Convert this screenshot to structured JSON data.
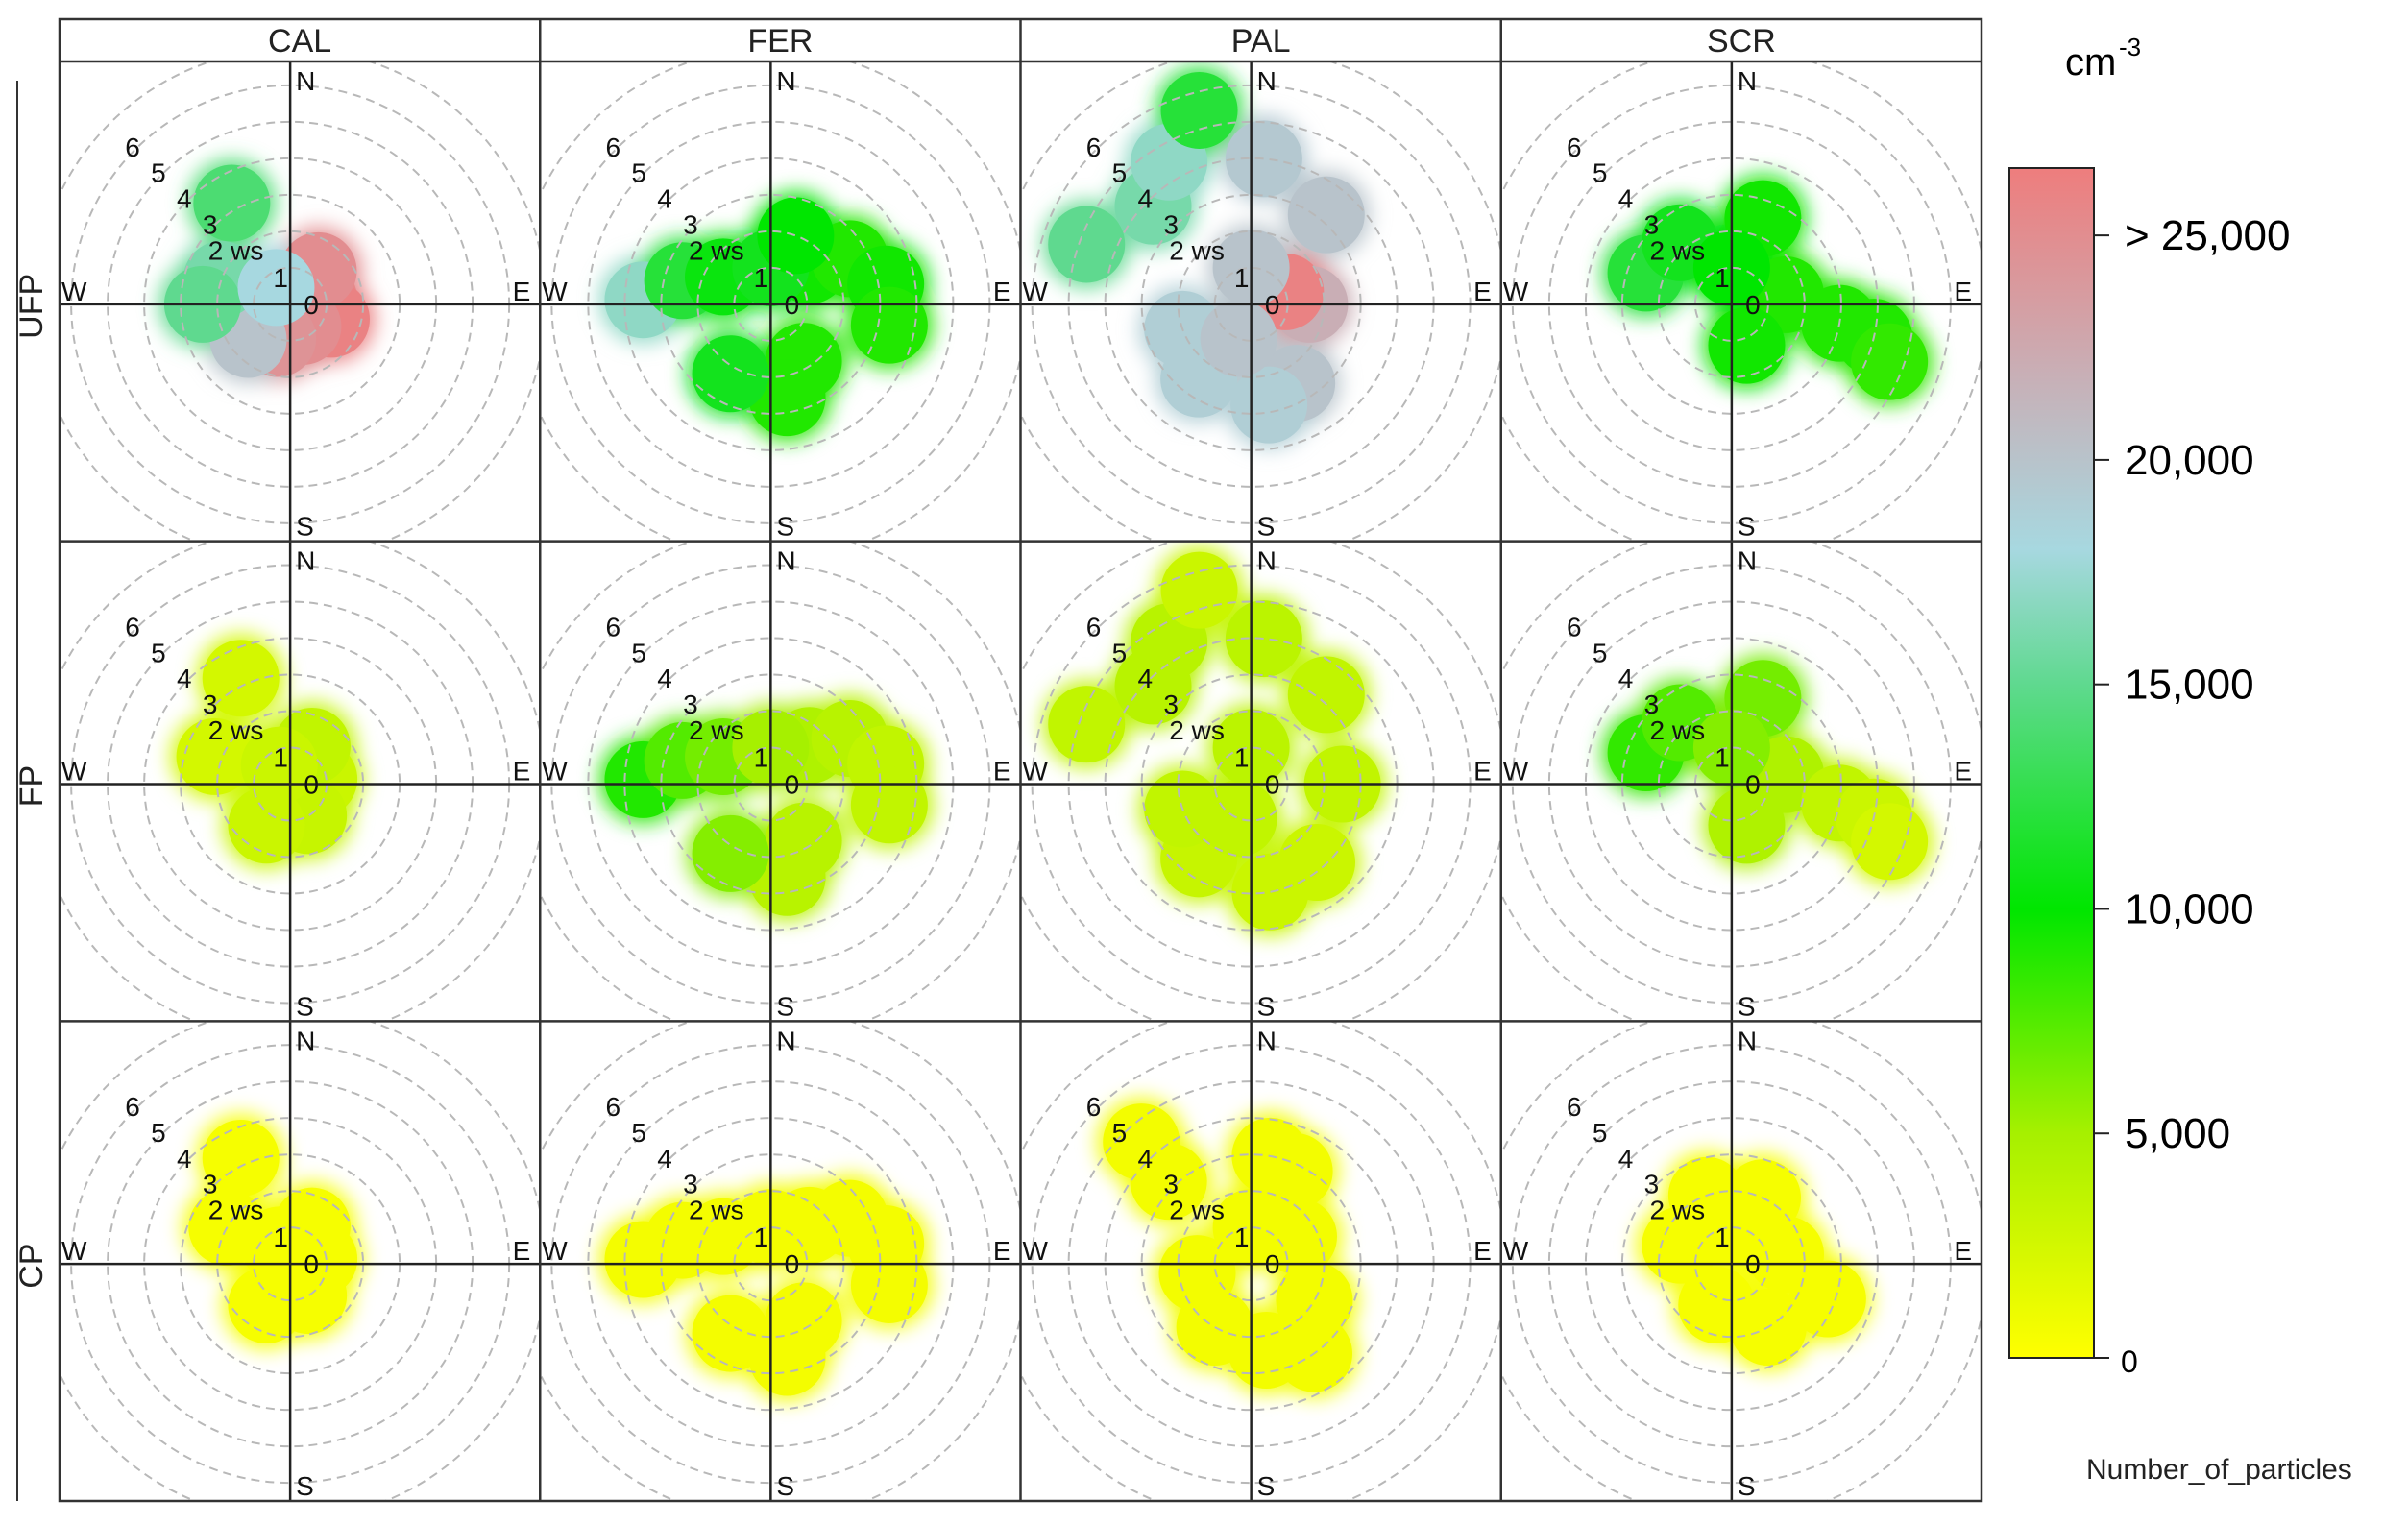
{
  "chart_data": {
    "type": "polar-plot-grid",
    "columns": [
      "CAL",
      "FER",
      "PAL",
      "SCR"
    ],
    "rows": [
      "UFP",
      "FP",
      "CP"
    ],
    "directions": [
      "N",
      "E",
      "S",
      "W"
    ],
    "ring_labels": [
      "0",
      "1",
      "2 ws",
      "3",
      "4",
      "5",
      "6"
    ],
    "colorbar": {
      "unit": "cm",
      "unit_superscript": "-3",
      "ticks": [
        {
          "value": 0,
          "label": "0"
        },
        {
          "value": 5000,
          "label": "5,000"
        },
        {
          "value": 10000,
          "label": "10,000"
        },
        {
          "value": 15000,
          "label": "15,000"
        },
        {
          "value": 20000,
          "label": "20,000"
        },
        {
          "value": 25000,
          "label": "> 25,000"
        }
      ],
      "range": [
        0,
        26500
      ],
      "stops": [
        {
          "value": 0,
          "color": "#ffff00"
        },
        {
          "value": 5000,
          "color": "#a6f000"
        },
        {
          "value": 10000,
          "color": "#00e600"
        },
        {
          "value": 15000,
          "color": "#5fd98f"
        },
        {
          "value": 18000,
          "color": "#a7d8e0"
        },
        {
          "value": 22000,
          "color": "#c9aeb5"
        },
        {
          "value": 26500,
          "color": "#ee7d7d"
        }
      ],
      "variable": "Number_of_particles"
    },
    "panels": [
      {
        "row": "UFP",
        "col": "CAL",
        "blobs": [
          {
            "ws": 0.8,
            "dir": 80,
            "value": 25500
          },
          {
            "ws": 1.2,
            "dir": 110,
            "value": 26000
          },
          {
            "ws": 0.7,
            "dir": 150,
            "value": 25000
          },
          {
            "ws": 1.0,
            "dir": 200,
            "value": 24500
          },
          {
            "ws": 1.5,
            "dir": 230,
            "value": 20000
          },
          {
            "ws": 2.0,
            "dir": 290,
            "value": 16000
          },
          {
            "ws": 2.4,
            "dir": 270,
            "value": 15000
          },
          {
            "ws": 3.2,
            "dir": 330,
            "value": 14000
          },
          {
            "ws": 1.2,
            "dir": 40,
            "value": 25000
          },
          {
            "ws": 0.6,
            "dir": 320,
            "value": 18000
          }
        ]
      },
      {
        "row": "UFP",
        "col": "FER",
        "blobs": [
          {
            "ws": 3.5,
            "dir": 272,
            "value": 17000
          },
          {
            "ws": 2.5,
            "dir": 285,
            "value": 12000
          },
          {
            "ws": 1.5,
            "dir": 300,
            "value": 10500
          },
          {
            "ws": 1.5,
            "dir": 45,
            "value": 9500
          },
          {
            "ws": 2.5,
            "dir": 60,
            "value": 9000
          },
          {
            "ws": 3.2,
            "dir": 80,
            "value": 9500
          },
          {
            "ws": 3.3,
            "dir": 100,
            "value": 9000
          },
          {
            "ws": 1.8,
            "dir": 150,
            "value": 9000
          },
          {
            "ws": 2.6,
            "dir": 170,
            "value": 9000
          },
          {
            "ws": 2.2,
            "dir": 210,
            "value": 11000
          },
          {
            "ws": 1.0,
            "dir": 0,
            "value": 11000
          },
          {
            "ws": 2.0,
            "dir": 20,
            "value": 10000
          }
        ]
      },
      {
        "row": "UFP",
        "col": "PAL",
        "blobs": [
          {
            "ws": 4.8,
            "dir": 290,
            "value": 15000
          },
          {
            "ws": 3.8,
            "dir": 315,
            "value": 16000
          },
          {
            "ws": 4.5,
            "dir": 330,
            "value": 17000
          },
          {
            "ws": 4.0,
            "dir": 5,
            "value": 19500
          },
          {
            "ws": 3.2,
            "dir": 40,
            "value": 20000
          },
          {
            "ws": 1.6,
            "dir": 90,
            "value": 22000
          },
          {
            "ws": 1.0,
            "dir": 70,
            "value": 26000
          },
          {
            "ws": 2.5,
            "dir": 150,
            "value": 20000
          },
          {
            "ws": 2.8,
            "dir": 170,
            "value": 19000
          },
          {
            "ws": 2.5,
            "dir": 215,
            "value": 19000
          },
          {
            "ws": 2.0,
            "dir": 250,
            "value": 19000
          },
          {
            "ws": 1.0,
            "dir": 200,
            "value": 20000
          },
          {
            "ws": 1.0,
            "dir": 0,
            "value": 20000
          },
          {
            "ws": 5.5,
            "dir": 345,
            "value": 12000
          }
        ]
      },
      {
        "row": "UFP",
        "col": "SCR",
        "blobs": [
          {
            "ws": 2.5,
            "dir": 290,
            "value": 12000
          },
          {
            "ws": 2.2,
            "dir": 320,
            "value": 11000
          },
          {
            "ws": 2.5,
            "dir": 20,
            "value": 9500
          },
          {
            "ws": 1.5,
            "dir": 80,
            "value": 9000
          },
          {
            "ws": 3.0,
            "dir": 100,
            "value": 9000
          },
          {
            "ws": 4.0,
            "dir": 103,
            "value": 9000
          },
          {
            "ws": 4.6,
            "dir": 110,
            "value": 8500
          },
          {
            "ws": 1.2,
            "dir": 160,
            "value": 9500
          },
          {
            "ws": 1.0,
            "dir": 0,
            "value": 10000
          }
        ]
      },
      {
        "row": "FP",
        "col": "CAL",
        "blobs": [
          {
            "ws": 0.8,
            "dir": 80,
            "value": 3000
          },
          {
            "ws": 1.0,
            "dir": 150,
            "value": 3200
          },
          {
            "ws": 1.3,
            "dir": 210,
            "value": 3000
          },
          {
            "ws": 2.2,
            "dir": 290,
            "value": 2500
          },
          {
            "ws": 1.2,
            "dir": 30,
            "value": 3500
          },
          {
            "ws": 3.2,
            "dir": 335,
            "value": 2500
          },
          {
            "ws": 0.6,
            "dir": 330,
            "value": 3000
          }
        ]
      },
      {
        "row": "FP",
        "col": "FER",
        "blobs": [
          {
            "ws": 3.5,
            "dir": 272,
            "value": 9000
          },
          {
            "ws": 2.5,
            "dir": 285,
            "value": 7500
          },
          {
            "ws": 1.5,
            "dir": 300,
            "value": 6500
          },
          {
            "ws": 1.5,
            "dir": 45,
            "value": 4500
          },
          {
            "ws": 2.5,
            "dir": 60,
            "value": 4000
          },
          {
            "ws": 3.2,
            "dir": 80,
            "value": 3500
          },
          {
            "ws": 3.3,
            "dir": 100,
            "value": 3500
          },
          {
            "ws": 1.8,
            "dir": 150,
            "value": 4000
          },
          {
            "ws": 2.6,
            "dir": 170,
            "value": 4000
          },
          {
            "ws": 2.2,
            "dir": 210,
            "value": 6000
          },
          {
            "ws": 1.0,
            "dir": 0,
            "value": 5000
          }
        ]
      },
      {
        "row": "FP",
        "col": "PAL",
        "blobs": [
          {
            "ws": 4.8,
            "dir": 290,
            "value": 3500
          },
          {
            "ws": 3.8,
            "dir": 315,
            "value": 4000
          },
          {
            "ws": 4.5,
            "dir": 330,
            "value": 4000
          },
          {
            "ws": 4.0,
            "dir": 5,
            "value": 3800
          },
          {
            "ws": 3.2,
            "dir": 40,
            "value": 3500
          },
          {
            "ws": 2.5,
            "dir": 90,
            "value": 3500
          },
          {
            "ws": 2.8,
            "dir": 140,
            "value": 3000
          },
          {
            "ws": 3.0,
            "dir": 170,
            "value": 3000
          },
          {
            "ws": 2.5,
            "dir": 215,
            "value": 3200
          },
          {
            "ws": 2.0,
            "dir": 250,
            "value": 3500
          },
          {
            "ws": 1.0,
            "dir": 200,
            "value": 3500
          },
          {
            "ws": 1.0,
            "dir": 0,
            "value": 3800
          },
          {
            "ws": 5.5,
            "dir": 345,
            "value": 3000
          }
        ]
      },
      {
        "row": "FP",
        "col": "SCR",
        "blobs": [
          {
            "ws": 2.5,
            "dir": 290,
            "value": 8500
          },
          {
            "ws": 2.2,
            "dir": 320,
            "value": 7500
          },
          {
            "ws": 2.5,
            "dir": 20,
            "value": 6500
          },
          {
            "ws": 1.5,
            "dir": 80,
            "value": 4500
          },
          {
            "ws": 3.0,
            "dir": 100,
            "value": 3500
          },
          {
            "ws": 4.0,
            "dir": 103,
            "value": 3000
          },
          {
            "ws": 4.6,
            "dir": 110,
            "value": 2500
          },
          {
            "ws": 1.2,
            "dir": 160,
            "value": 4500
          },
          {
            "ws": 1.0,
            "dir": 0,
            "value": 6000
          }
        ]
      },
      {
        "row": "CP",
        "col": "CAL",
        "blobs": [
          {
            "ws": 0.8,
            "dir": 80,
            "value": 500
          },
          {
            "ws": 1.0,
            "dir": 150,
            "value": 500
          },
          {
            "ws": 1.3,
            "dir": 210,
            "value": 500
          },
          {
            "ws": 2.0,
            "dir": 300,
            "value": 500
          },
          {
            "ws": 1.2,
            "dir": 30,
            "value": 500
          },
          {
            "ws": 3.2,
            "dir": 335,
            "value": 500
          },
          {
            "ws": 0.6,
            "dir": 330,
            "value": 500
          }
        ]
      },
      {
        "row": "CP",
        "col": "FER",
        "blobs": [
          {
            "ws": 3.5,
            "dir": 272,
            "value": 600
          },
          {
            "ws": 2.5,
            "dir": 285,
            "value": 600
          },
          {
            "ws": 1.5,
            "dir": 300,
            "value": 600
          },
          {
            "ws": 1.5,
            "dir": 45,
            "value": 600
          },
          {
            "ws": 2.5,
            "dir": 60,
            "value": 600
          },
          {
            "ws": 3.2,
            "dir": 80,
            "value": 600
          },
          {
            "ws": 3.3,
            "dir": 100,
            "value": 600
          },
          {
            "ws": 1.8,
            "dir": 150,
            "value": 600
          },
          {
            "ws": 2.6,
            "dir": 170,
            "value": 600
          },
          {
            "ws": 2.2,
            "dir": 210,
            "value": 600
          },
          {
            "ws": 1.0,
            "dir": 0,
            "value": 600
          }
        ]
      },
      {
        "row": "CP",
        "col": "PAL",
        "blobs": [
          {
            "ws": 4.5,
            "dir": 318,
            "value": 700
          },
          {
            "ws": 3.2,
            "dir": 315,
            "value": 700
          },
          {
            "ws": 3.0,
            "dir": 10,
            "value": 700
          },
          {
            "ws": 2.8,
            "dir": 25,
            "value": 700
          },
          {
            "ws": 1.5,
            "dir": 60,
            "value": 700
          },
          {
            "ws": 2.0,
            "dir": 120,
            "value": 700
          },
          {
            "ws": 3.0,
            "dir": 145,
            "value": 700
          },
          {
            "ws": 2.4,
            "dir": 170,
            "value": 700
          },
          {
            "ws": 2.0,
            "dir": 210,
            "value": 700
          },
          {
            "ws": 1.5,
            "dir": 260,
            "value": 700
          },
          {
            "ws": 1.0,
            "dir": 0,
            "value": 700
          }
        ]
      },
      {
        "row": "CP",
        "col": "SCR",
        "blobs": [
          {
            "ws": 1.5,
            "dir": 290,
            "value": 500
          },
          {
            "ws": 2.0,
            "dir": 340,
            "value": 500
          },
          {
            "ws": 2.0,
            "dir": 25,
            "value": 500
          },
          {
            "ws": 1.5,
            "dir": 80,
            "value": 500
          },
          {
            "ws": 2.8,
            "dir": 110,
            "value": 500
          },
          {
            "ws": 2.0,
            "dir": 150,
            "value": 500
          },
          {
            "ws": 1.2,
            "dir": 200,
            "value": 500
          },
          {
            "ws": 1.0,
            "dir": 0,
            "value": 500
          }
        ]
      }
    ]
  }
}
